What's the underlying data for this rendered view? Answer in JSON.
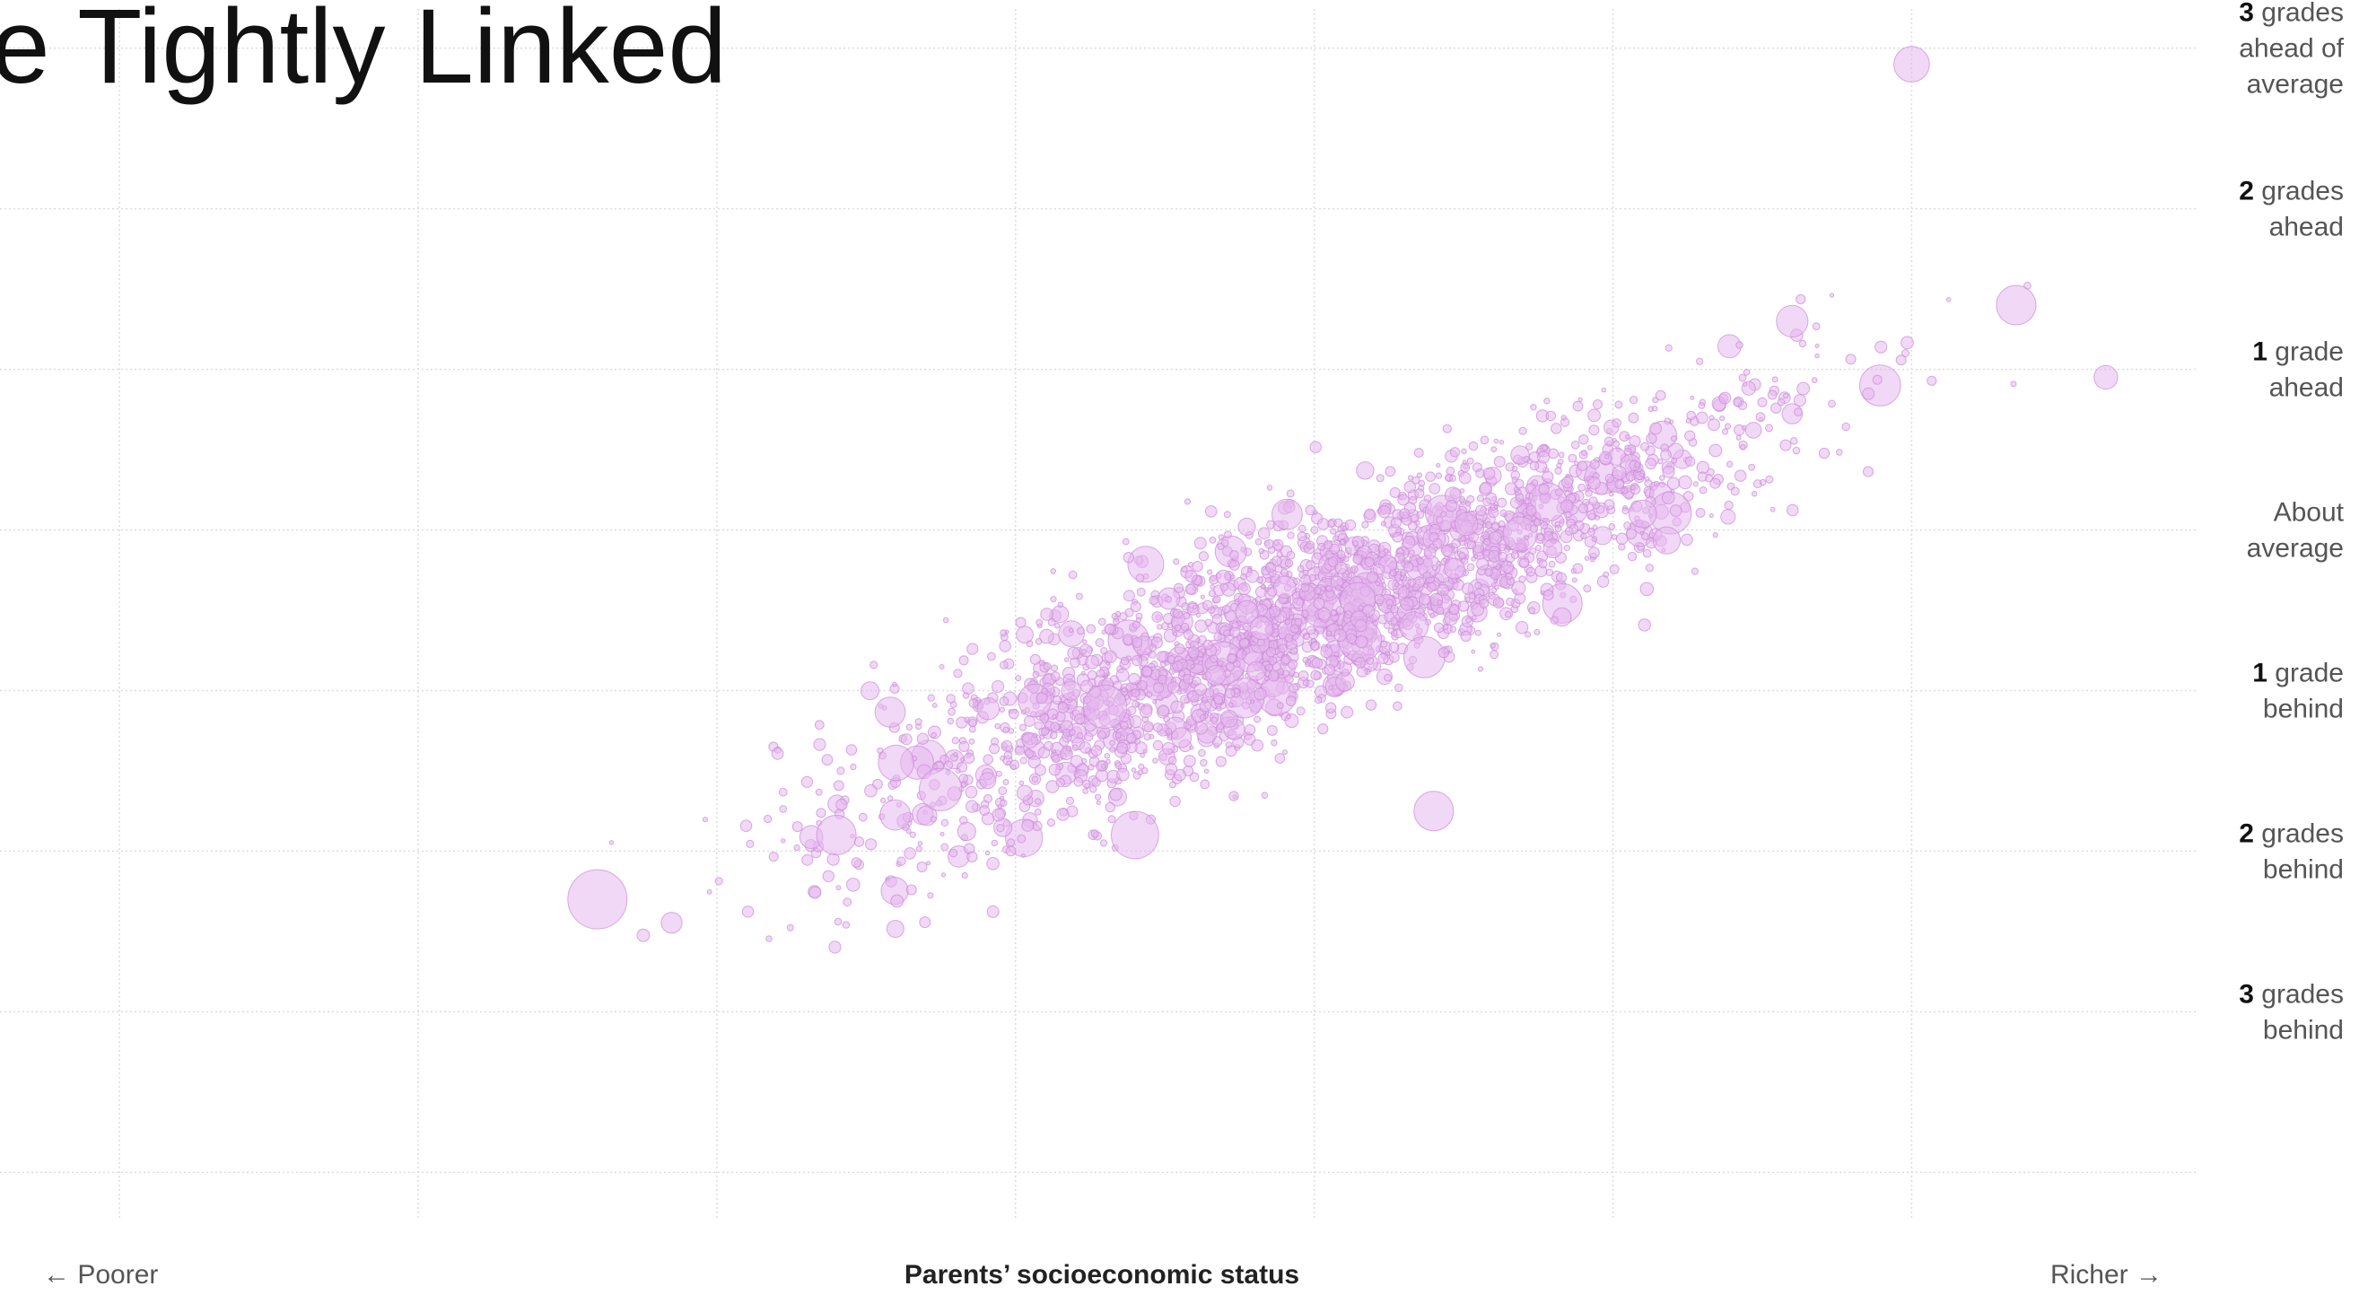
{
  "chart_data": {
    "type": "scatter",
    "title_fragment": "e Tightly Linked",
    "xlabel": "Parents’ socioeconomic status",
    "x_left_label": "← Poorer",
    "x_right_label": "Richer →",
    "y_tick_labels": [
      {
        "num": "3",
        "word": "grades",
        "line2": "ahead of",
        "line3": "average",
        "value": 3
      },
      {
        "num": "2",
        "word": "grades",
        "line2": "ahead",
        "line3": "",
        "value": 2
      },
      {
        "num": "1",
        "word": "grade",
        "line2": "ahead",
        "line3": "",
        "value": 1
      },
      {
        "num": "",
        "word": "About",
        "line2": "average",
        "line3": "",
        "value": 0
      },
      {
        "num": "1",
        "word": "grade",
        "line2": "behind",
        "line3": "",
        "value": -1
      },
      {
        "num": "2",
        "word": "grades",
        "line2": "behind",
        "line3": "",
        "value": -2
      },
      {
        "num": "3",
        "word": "grades",
        "line2": "behind",
        "line3": "",
        "value": -3
      }
    ],
    "xlim": [
      -5,
      2.3
    ],
    "ylim": [
      -4.3,
      3.3
    ],
    "grid": true,
    "dot_color": "#e6b8ee",
    "trend": {
      "slope": 0.79,
      "intercept": -0.05
    },
    "points_sample": [
      {
        "x": -3.0,
        "y": -2.3,
        "size": 3.0
      },
      {
        "x": -2.2,
        "y": -1.9,
        "size": 2.0
      },
      {
        "x": -2.0,
        "y": -1.45,
        "size": 1.8
      },
      {
        "x": -1.2,
        "y": -1.9,
        "size": 2.4
      },
      {
        "x": -1.3,
        "y": -1.1,
        "size": 2.2
      },
      {
        "x": -0.2,
        "y": -1.75,
        "size": 2.0
      },
      {
        "x": 0.5,
        "y": 0.1,
        "size": 1.4
      },
      {
        "x": 1.0,
        "y": 1.3,
        "size": 1.6
      },
      {
        "x": 1.75,
        "y": 1.4,
        "size": 2.0
      },
      {
        "x": 1.4,
        "y": 2.9,
        "size": 1.8
      },
      {
        "x": 2.05,
        "y": 0.95,
        "size": 1.2
      }
    ]
  }
}
